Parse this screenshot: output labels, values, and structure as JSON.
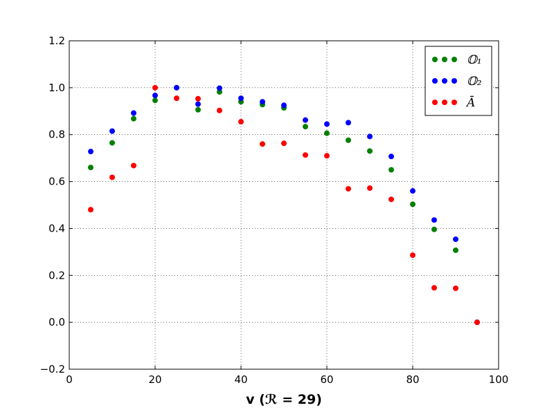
{
  "chart_data": {
    "type": "scatter",
    "xlabel_bold": "v",
    "xlabel_rest": " (ℛ = 29)",
    "xlim": [
      0,
      100
    ],
    "ylim": [
      -0.2,
      1.2
    ],
    "grid": true,
    "legend_position": "top-right",
    "x_ticks": [
      0,
      20,
      40,
      60,
      80,
      100
    ],
    "y_ticks": [
      -0.2,
      0.0,
      0.2,
      0.4,
      0.6,
      0.8,
      1.0,
      1.2
    ],
    "x_tick_labels": [
      "0",
      "20",
      "40",
      "60",
      "80",
      "100"
    ],
    "y_tick_labels": [
      "−0.2",
      "0.0",
      "0.2",
      "0.4",
      "0.6",
      "0.8",
      "1.0",
      "1.2"
    ],
    "series": [
      {
        "name": "𝕆₁",
        "color": "#008000",
        "points": [
          [
            5,
            0.66
          ],
          [
            10,
            0.765
          ],
          [
            15,
            0.868
          ],
          [
            20,
            0.946
          ],
          [
            25,
            1.0
          ],
          [
            30,
            0.906
          ],
          [
            35,
            0.982
          ],
          [
            40,
            0.94
          ],
          [
            45,
            0.928
          ],
          [
            50,
            0.914
          ],
          [
            55,
            0.834
          ],
          [
            60,
            0.806
          ],
          [
            65,
            0.776
          ],
          [
            70,
            0.73
          ],
          [
            75,
            0.65
          ],
          [
            80,
            0.503
          ],
          [
            85,
            0.396
          ],
          [
            90,
            0.307
          ],
          [
            95,
            0.0
          ]
        ]
      },
      {
        "name": "𝕆₂",
        "color": "#0000ff",
        "points": [
          [
            5,
            0.728
          ],
          [
            10,
            0.815
          ],
          [
            15,
            0.892
          ],
          [
            20,
            0.967
          ],
          [
            25,
            1.0
          ],
          [
            30,
            0.93
          ],
          [
            35,
            0.998
          ],
          [
            40,
            0.955
          ],
          [
            45,
            0.94
          ],
          [
            50,
            0.925
          ],
          [
            55,
            0.862
          ],
          [
            60,
            0.845
          ],
          [
            65,
            0.851
          ],
          [
            70,
            0.792
          ],
          [
            75,
            0.707
          ],
          [
            80,
            0.56
          ],
          [
            85,
            0.436
          ],
          [
            90,
            0.354
          ],
          [
            95,
            0.0
          ]
        ]
      },
      {
        "name": "Ā",
        "color": "#ff0000",
        "points": [
          [
            5,
            0.48
          ],
          [
            10,
            0.618
          ],
          [
            15,
            0.668
          ],
          [
            20,
            1.0
          ],
          [
            25,
            0.955
          ],
          [
            30,
            0.953
          ],
          [
            35,
            0.903
          ],
          [
            40,
            0.855
          ],
          [
            45,
            0.76
          ],
          [
            50,
            0.763
          ],
          [
            55,
            0.713
          ],
          [
            60,
            0.71
          ],
          [
            65,
            0.569
          ],
          [
            70,
            0.572
          ],
          [
            75,
            0.524
          ],
          [
            80,
            0.286
          ],
          [
            85,
            0.147
          ],
          [
            90,
            0.145
          ],
          [
            95,
            0.0
          ]
        ]
      }
    ]
  }
}
